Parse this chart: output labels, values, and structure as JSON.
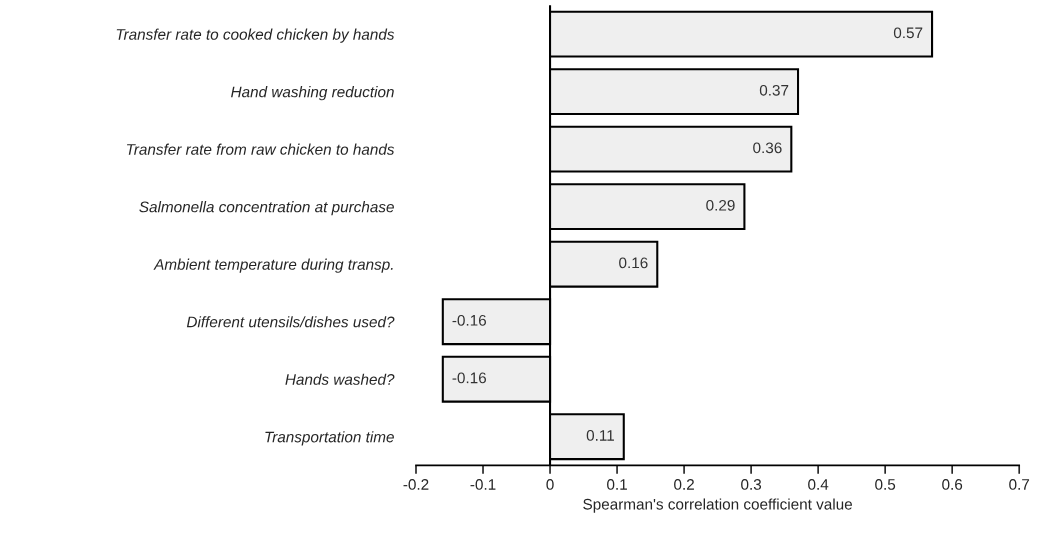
{
  "chart_data": {
    "type": "bar",
    "orientation": "horizontal",
    "xlabel": "Spearman's correlation coefficient value",
    "categories": [
      "Transfer rate to cooked chicken by hands",
      "Hand washing reduction",
      "Transfer rate from raw chicken to hands",
      "Salmonella concentration at purchase",
      "Ambient temperature during transp.",
      "Different utensils/dishes used?",
      "Hands washed?",
      "Transportation time"
    ],
    "values": [
      0.57,
      0.37,
      0.36,
      0.29,
      0.16,
      -0.16,
      -0.16,
      0.11
    ],
    "color": "#efefef",
    "data_labels": true,
    "grid": false,
    "legend": false,
    "xlim": [
      -0.2,
      0.7
    ],
    "xticks": [
      -0.2,
      -0.1,
      0,
      0.1,
      0.2,
      0.3,
      0.4,
      0.5,
      0.6,
      0.7
    ],
    "ref_lines": [
      {
        "axis": "x",
        "value": 0,
        "color": "#000000"
      }
    ]
  }
}
